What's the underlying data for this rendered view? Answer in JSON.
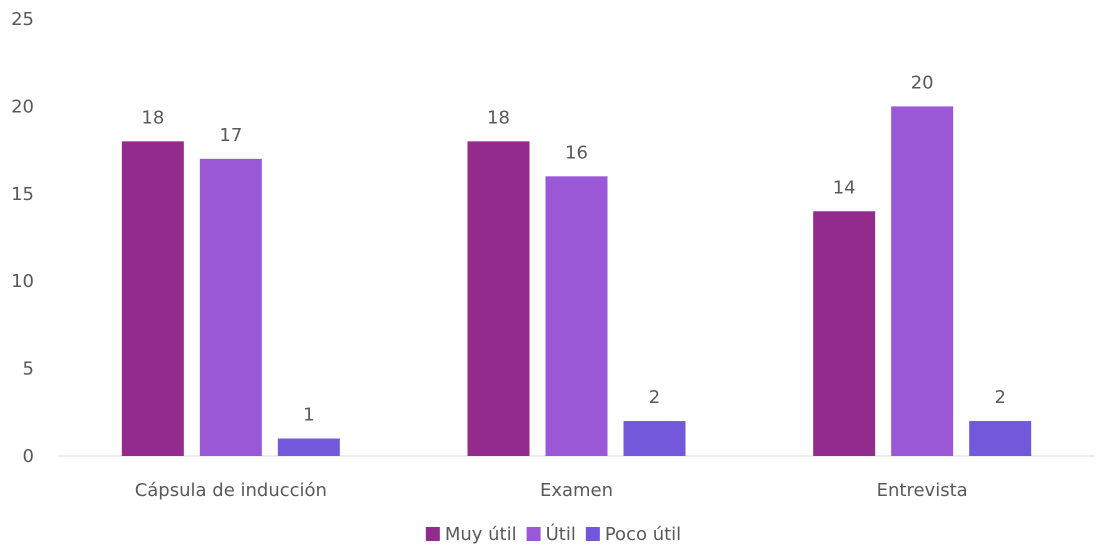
{
  "chart_data": {
    "type": "bar",
    "categories": [
      "Cápsula de inducción",
      "Examen",
      "Entrevista"
    ],
    "series": [
      {
        "name": "Muy útil",
        "values": [
          18,
          18,
          14
        ],
        "color": "#922B8C"
      },
      {
        "name": "Útil",
        "values": [
          17,
          16,
          20
        ],
        "color": "#9A58D6"
      },
      {
        "name": "Poco útil",
        "values": [
          1,
          2,
          2
        ],
        "color": "#7458DC"
      }
    ],
    "ylim": [
      0,
      25
    ],
    "yticks": [
      "0",
      "5",
      "10",
      "15",
      "20",
      "25"
    ],
    "title": "",
    "xlabel": "",
    "ylabel": "",
    "grid": false,
    "legend_position": "bottom",
    "data_labels": true
  }
}
